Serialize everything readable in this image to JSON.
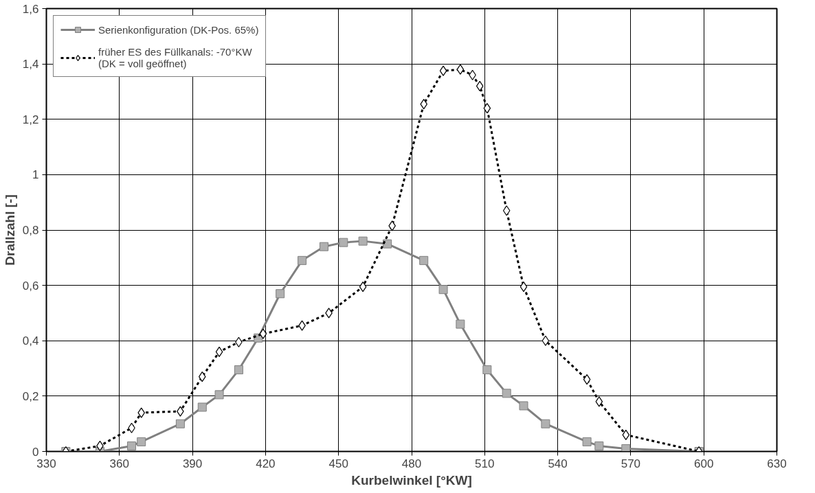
{
  "chart_data": {
    "type": "line",
    "xlabel": "Kurbelwinkel [°KW]",
    "ylabel": "Drallzahl [-]",
    "xlim": [
      330,
      630
    ],
    "xticks": [
      330,
      360,
      390,
      420,
      450,
      480,
      510,
      540,
      570,
      600,
      630
    ],
    "ylim": [
      0,
      1.6
    ],
    "yticks": [
      0,
      {
        "value": 0.2,
        "label": "0,2"
      },
      {
        "value": 0.4,
        "label": "0,4"
      },
      {
        "value": 0.6,
        "label": "0,6"
      },
      {
        "value": 0.8,
        "label": "0,8"
      },
      1,
      {
        "value": 1.2,
        "label": "1,2"
      },
      {
        "value": 1.4,
        "label": "1,4"
      },
      {
        "value": 1.6,
        "label": "1,6"
      }
    ],
    "grid": true,
    "legend": "top left",
    "series": [
      {
        "name": "Serienkonfiguration (DK-Pos. 65%)",
        "color": "#808080",
        "marker": "square",
        "line_style": "solid",
        "x": [
          338,
          352,
          365,
          369,
          385,
          394,
          401,
          409,
          417,
          426,
          435,
          444,
          452,
          460,
          470,
          485,
          493,
          500,
          511,
          519,
          526,
          535,
          552,
          557,
          568,
          598
        ],
        "values": [
          0,
          0,
          0.02,
          0.035,
          0.1,
          0.16,
          0.205,
          0.295,
          0.41,
          0.57,
          0.69,
          0.74,
          0.755,
          0.76,
          0.75,
          0.69,
          0.585,
          0.46,
          0.295,
          0.21,
          0.165,
          0.1,
          0.035,
          0.02,
          0.01,
          0
        ]
      },
      {
        "name": "früher ES des Füllkanals: -70°KW\n(DK = voll geöffnet)",
        "color": "#000000",
        "marker": "diamond",
        "line_style": "dotted",
        "x": [
          338,
          352,
          365,
          369,
          385,
          394,
          401,
          409,
          419,
          435,
          446,
          460,
          472,
          485,
          493,
          500,
          505,
          508,
          511,
          519,
          526,
          535,
          552,
          557,
          568,
          598
        ],
        "values": [
          0,
          0.02,
          0.085,
          0.14,
          0.145,
          0.27,
          0.36,
          0.395,
          0.425,
          0.455,
          0.5,
          0.595,
          0.815,
          1.255,
          1.375,
          1.38,
          1.36,
          1.32,
          1.24,
          0.87,
          0.595,
          0.4,
          0.26,
          0.18,
          0.06,
          0
        ]
      }
    ]
  }
}
